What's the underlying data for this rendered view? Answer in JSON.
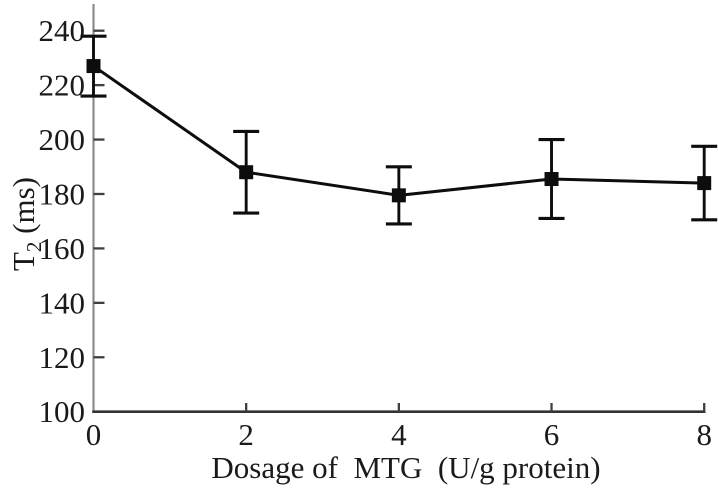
{
  "figure": {
    "kind": "scientific-plot",
    "background": "#ffffff"
  },
  "chart_data": {
    "type": "line",
    "title": "",
    "xlabel": "Dosage of  MTG  (U/g protein)",
    "ylabel": {
      "base": "T",
      "subscript": "2",
      "suffix": " (ms)",
      "plain": "T2 (ms)"
    },
    "x": [
      0,
      2,
      4,
      6,
      8
    ],
    "series": [
      {
        "name": "T2 (ms)",
        "values": [
          227,
          188,
          179.5,
          185.5,
          184
        ],
        "errors": [
          11,
          15,
          10.5,
          14.5,
          13.5
        ],
        "marker": "filled-square",
        "color": "#0d0d0d"
      }
    ],
    "xlim": [
      0,
      8
    ],
    "ylim": [
      100,
      240
    ],
    "x_ticks": [
      0,
      2,
      4,
      6,
      8
    ],
    "y_ticks": [
      100,
      120,
      140,
      160,
      180,
      200,
      220,
      240
    ],
    "error_bars": true,
    "grid": false,
    "legend": null,
    "colors": {
      "data": "#0d0d0d",
      "text": "#1a1a1a",
      "y_axis": "#8c8c8c",
      "x_axis": "#333333",
      "tick": "#404040",
      "background": "#ffffff"
    }
  }
}
